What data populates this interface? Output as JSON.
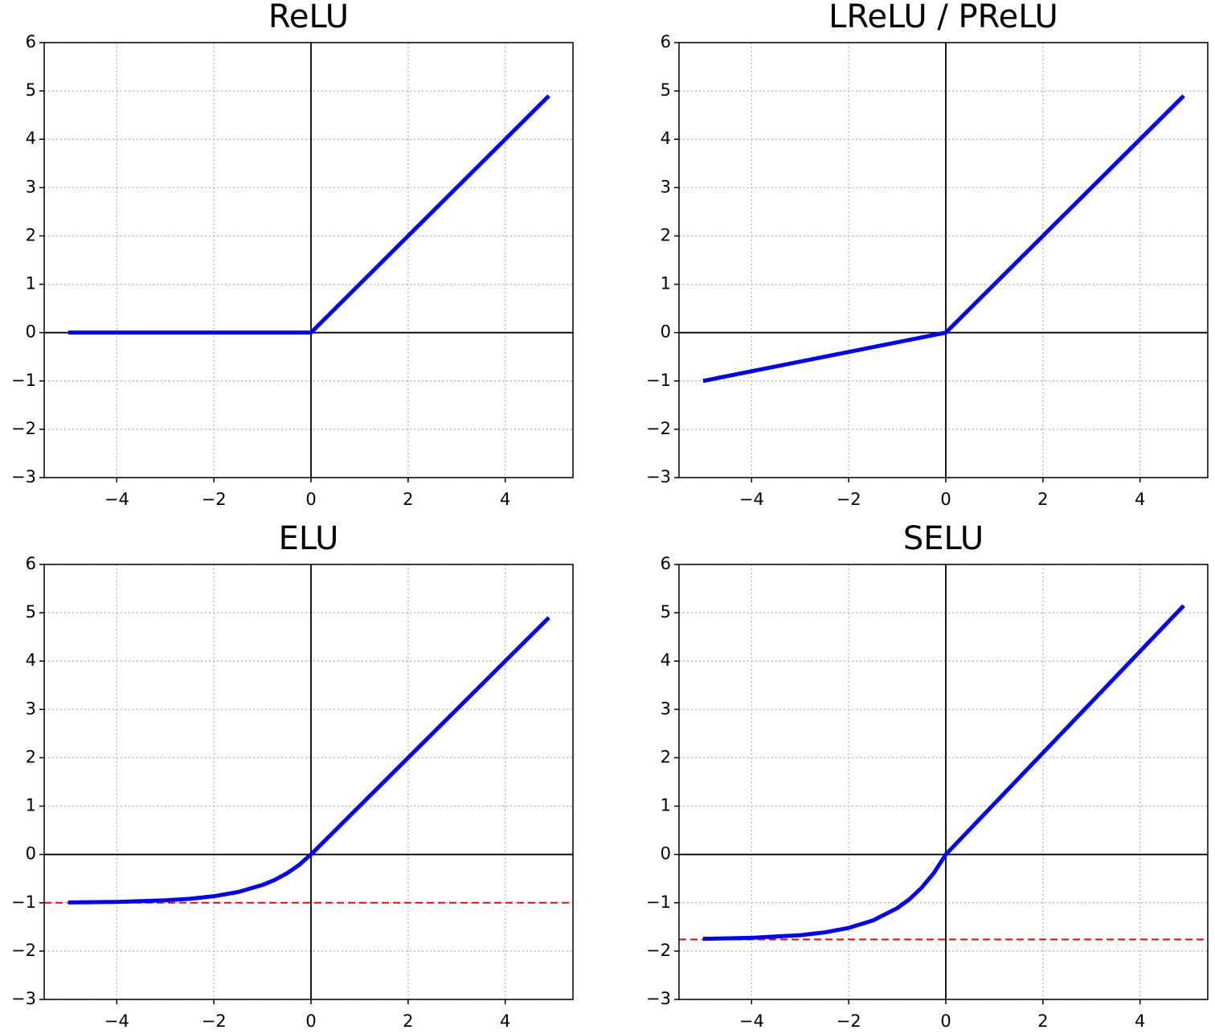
{
  "chart_data": [
    {
      "type": "line",
      "title": "ReLU",
      "x": [
        -5,
        0,
        4.9
      ],
      "values": [
        0,
        0,
        4.9
      ],
      "color": "#0000ff",
      "xlim": [
        -5.495,
        5.395
      ],
      "ylim": [
        -3,
        6
      ],
      "xticks": [
        {
          "value": -4,
          "label": "−4"
        },
        {
          "value": -2,
          "label": "−2"
        },
        0,
        2,
        4
      ],
      "yticks": [
        {
          "value": -3,
          "label": "−3"
        },
        {
          "value": -2,
          "label": "−2"
        },
        {
          "value": -1,
          "label": "−1"
        },
        0,
        1,
        2,
        3,
        4,
        5,
        6
      ],
      "grid": true
    },
    {
      "type": "line",
      "title": "LReLU / PReLU",
      "x": [
        -5,
        0,
        4.9
      ],
      "values": [
        -1,
        0,
        4.9
      ],
      "color": "#0000ff",
      "xlim": [
        -5.495,
        5.395
      ],
      "ylim": [
        -3,
        6
      ],
      "xticks": [
        {
          "value": -4,
          "label": "−4"
        },
        {
          "value": -2,
          "label": "−2"
        },
        0,
        2,
        4
      ],
      "yticks": [
        {
          "value": -3,
          "label": "−3"
        },
        {
          "value": -2,
          "label": "−2"
        },
        {
          "value": -1,
          "label": "−1"
        },
        0,
        1,
        2,
        3,
        4,
        5,
        6
      ],
      "grid": true
    },
    {
      "type": "line",
      "title": "ELU",
      "x": [
        -5,
        -4,
        -3,
        -2.5,
        -2,
        -1.5,
        -1,
        -0.75,
        -0.5,
        -0.25,
        0,
        4.9
      ],
      "values": [
        -0.993,
        -0.982,
        -0.95,
        -0.918,
        -0.865,
        -0.777,
        -0.632,
        -0.528,
        -0.393,
        -0.221,
        0,
        4.9
      ],
      "color": "#0000ff",
      "hline": -1,
      "hline_color": "#ff0000",
      "xlim": [
        -5.495,
        5.395
      ],
      "ylim": [
        -3,
        6
      ],
      "xticks": [
        {
          "value": -4,
          "label": "−4"
        },
        {
          "value": -2,
          "label": "−2"
        },
        0,
        2,
        4
      ],
      "yticks": [
        {
          "value": -3,
          "label": "−3"
        },
        {
          "value": -2,
          "label": "−2"
        },
        {
          "value": -1,
          "label": "−1"
        },
        0,
        1,
        2,
        3,
        4,
        5,
        6
      ],
      "grid": true
    },
    {
      "type": "line",
      "title": "SELU",
      "x": [
        -5,
        -4,
        -3,
        -2.5,
        -2,
        -1.5,
        -1,
        -0.75,
        -0.5,
        -0.25,
        0,
        4.9
      ],
      "values": [
        -1.746,
        -1.726,
        -1.671,
        -1.614,
        -1.52,
        -1.366,
        -1.111,
        -0.928,
        -0.691,
        -0.389,
        0,
        5.148
      ],
      "color": "#0000ff",
      "hline": -1.7581,
      "hline_color": "#ff0000",
      "xlim": [
        -5.495,
        5.395
      ],
      "ylim": [
        -3,
        6
      ],
      "xticks": [
        {
          "value": -4,
          "label": "−4"
        },
        {
          "value": -2,
          "label": "−2"
        },
        0,
        2,
        4
      ],
      "yticks": [
        {
          "value": -3,
          "label": "−3"
        },
        {
          "value": -2,
          "label": "−2"
        },
        {
          "value": -1,
          "label": "−1"
        },
        0,
        1,
        2,
        3,
        4,
        5,
        6
      ],
      "grid": true
    }
  ]
}
